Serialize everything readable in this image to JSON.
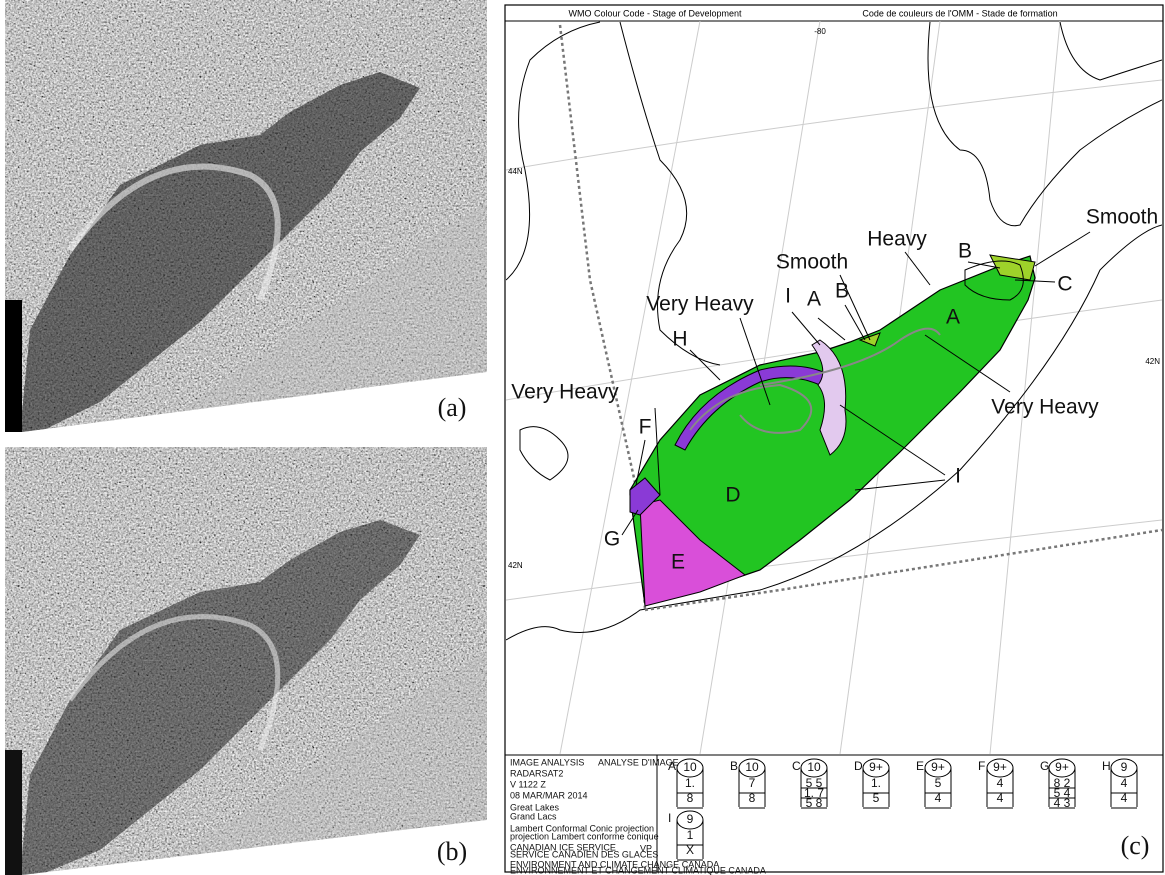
{
  "panels": {
    "a": "(a)",
    "b": "(b)",
    "c": "(c)"
  },
  "map": {
    "header": {
      "left": "WMO Colour Code - Stage of Development",
      "right": "Code de couleurs de l'OMM - Stade de formation"
    },
    "graticule": [
      "-80",
      "44N",
      "42N",
      "42N"
    ],
    "annotations": [
      "Smooth",
      "B",
      "Heavy",
      "Smooth",
      "B",
      "A",
      "C",
      "Very Heavy",
      "I",
      "A",
      "H",
      "Very Heavy",
      "Very Heavy",
      "F",
      "I",
      "D",
      "G",
      "E"
    ]
  },
  "info": {
    "title": "IMAGE ANALYSIS",
    "title_fr": "ANALYSE D'IMAGE",
    "sensor": "RADARSAT2",
    "time": "V 1122 Z",
    "date": "08 MAR/MAR 2014",
    "region": "Great Lakes",
    "region_fr": "Grand Lacs",
    "projection": "Lambert Conformal Conic projection",
    "projection_fr": "projection Lambert conforme conique",
    "service": "CANADIAN ICE SERVICE",
    "service_fr": "SERVICE CANADIEN DES GLACES",
    "analyst": "VP",
    "dept": "ENVIRONMENT AND CLIMATE CHANGE CANADA",
    "dept_fr": "ENVIRONNEMENT ET CHANGEMENT CLIMATIQUE CANADA"
  },
  "egg_codes": [
    {
      "id": "A",
      "total": "10",
      "rows": [
        "1.",
        "8"
      ]
    },
    {
      "id": "B",
      "total": "10",
      "rows": [
        "7",
        "8"
      ]
    },
    {
      "id": "C",
      "total": "10",
      "rows": [
        "5 5",
        "1. 7",
        "5 8"
      ]
    },
    {
      "id": "D",
      "total": "9+",
      "rows": [
        "1.",
        "5"
      ]
    },
    {
      "id": "E",
      "total": "9+",
      "rows": [
        "5",
        "4"
      ]
    },
    {
      "id": "F",
      "total": "9+",
      "rows": [
        "4",
        "4"
      ]
    },
    {
      "id": "G",
      "total": "9+",
      "rows": [
        "8 2",
        "5 4",
        "4 3"
      ]
    },
    {
      "id": "H",
      "total": "9",
      "rows": [
        "4",
        "4"
      ]
    },
    {
      "id": "I",
      "total": "9",
      "rows": [
        "1",
        "X"
      ]
    }
  ]
}
